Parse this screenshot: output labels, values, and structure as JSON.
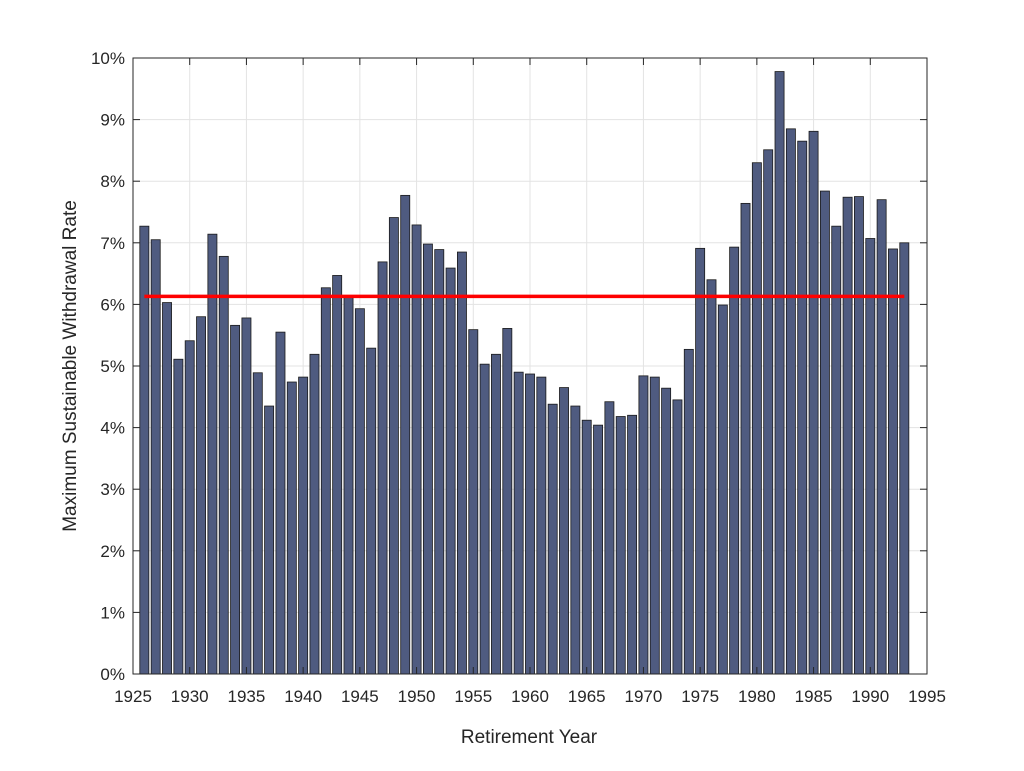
{
  "chart_data": {
    "type": "bar",
    "xlabel": "Retirement Year",
    "ylabel": "Maximum Sustainable Withdrawal Rate",
    "xlim": [
      1925,
      1995
    ],
    "ylim": [
      0,
      10
    ],
    "grid": true,
    "x_ticks": [
      1925,
      1930,
      1935,
      1940,
      1945,
      1950,
      1955,
      1960,
      1965,
      1970,
      1975,
      1980,
      1985,
      1990,
      1995
    ],
    "y_ticks": [
      0,
      1,
      2,
      3,
      4,
      5,
      6,
      7,
      8,
      9,
      10
    ],
    "y_tick_labels": [
      "0%",
      "1%",
      "2%",
      "3%",
      "4%",
      "5%",
      "6%",
      "7%",
      "8%",
      "9%",
      "10%"
    ],
    "bar_color": "#4f5b80",
    "bar_edge_color": "#1a1a1a",
    "reference_line": {
      "y": 6.13,
      "x_start": 1926,
      "x_end": 1993,
      "color": "#ff0000"
    },
    "x": [
      1926,
      1927,
      1928,
      1929,
      1930,
      1931,
      1932,
      1933,
      1934,
      1935,
      1936,
      1937,
      1938,
      1939,
      1940,
      1941,
      1942,
      1943,
      1944,
      1945,
      1946,
      1947,
      1948,
      1949,
      1950,
      1951,
      1952,
      1953,
      1954,
      1955,
      1956,
      1957,
      1958,
      1959,
      1960,
      1961,
      1962,
      1963,
      1964,
      1965,
      1966,
      1967,
      1968,
      1969,
      1970,
      1971,
      1972,
      1973,
      1974,
      1975,
      1976,
      1977,
      1978,
      1979,
      1980,
      1981,
      1982,
      1983,
      1984,
      1985,
      1986,
      1987,
      1988,
      1989,
      1990,
      1991,
      1992,
      1993
    ],
    "values": [
      7.27,
      7.05,
      6.03,
      5.11,
      5.41,
      5.8,
      7.14,
      6.78,
      5.66,
      5.78,
      4.89,
      4.35,
      5.55,
      4.74,
      4.82,
      5.19,
      6.27,
      6.47,
      6.14,
      5.93,
      5.29,
      6.69,
      7.41,
      7.77,
      7.29,
      6.98,
      6.89,
      6.59,
      6.85,
      5.59,
      5.03,
      5.19,
      5.61,
      4.9,
      4.87,
      4.82,
      4.38,
      4.65,
      4.35,
      4.12,
      4.04,
      4.42,
      4.18,
      4.2,
      4.84,
      4.82,
      4.64,
      4.45,
      5.27,
      6.91,
      6.4,
      5.99,
      6.93,
      7.64,
      8.3,
      8.51,
      9.78,
      8.85,
      8.65,
      8.81,
      7.84,
      7.27,
      7.74,
      7.75,
      7.07,
      7.7,
      6.9,
      7.0
    ]
  }
}
